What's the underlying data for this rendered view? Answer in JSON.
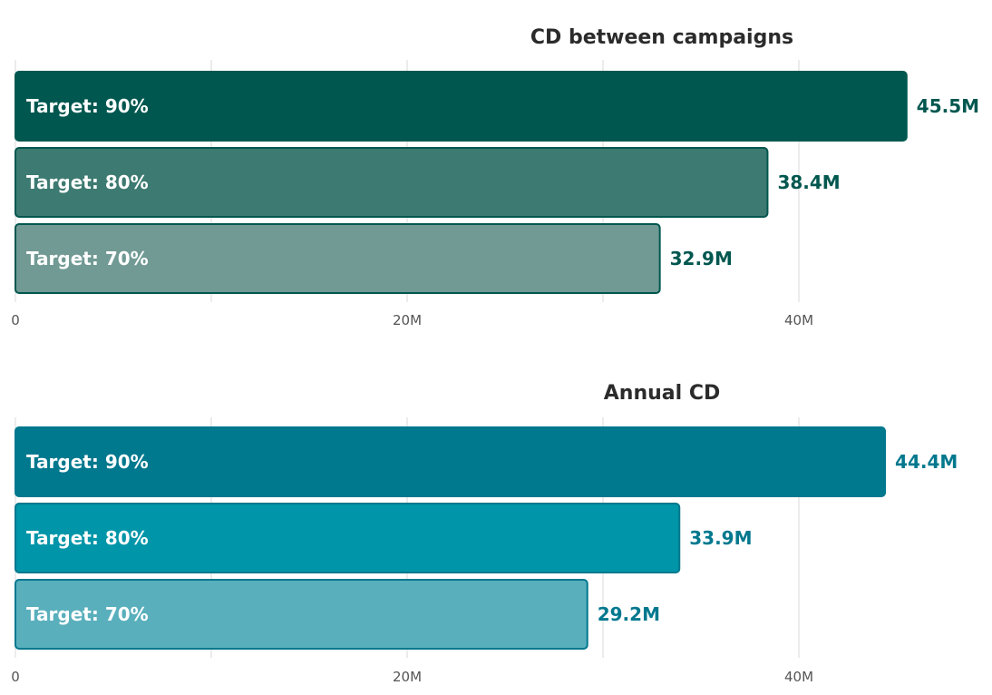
{
  "chart_data": [
    {
      "type": "bar",
      "orientation": "horizontal",
      "title": "CD between campaigns",
      "categories": [
        "Target: 90%",
        "Target: 80%",
        "Target: 70%"
      ],
      "values": [
        45.5,
        38.4,
        32.9
      ],
      "value_labels": [
        "45.5M",
        "38.4M",
        "32.9M"
      ],
      "xlim": [
        0,
        50
      ],
      "x_ticks": [
        0,
        20,
        40
      ],
      "x_tick_labels": [
        "0",
        "20M",
        "40M"
      ],
      "grid": true,
      "colors": [
        "#00574f",
        "#3d7a71",
        "#719a94"
      ],
      "stroke_color": "#00574f",
      "label_color": "#00574f"
    },
    {
      "type": "bar",
      "orientation": "horizontal",
      "title": "Annual CD",
      "categories": [
        "Target: 90%",
        "Target: 80%",
        "Target: 70%"
      ],
      "values": [
        44.4,
        33.9,
        29.2
      ],
      "value_labels": [
        "44.4M",
        "33.9M",
        "29.2M"
      ],
      "xlim": [
        0,
        50
      ],
      "x_ticks": [
        0,
        20,
        40
      ],
      "x_tick_labels": [
        "0",
        "20M",
        "40M"
      ],
      "grid": true,
      "colors": [
        "#00788e",
        "#0095a8",
        "#59afbc"
      ],
      "stroke_color": "#00788e",
      "label_color": "#00788e"
    }
  ]
}
